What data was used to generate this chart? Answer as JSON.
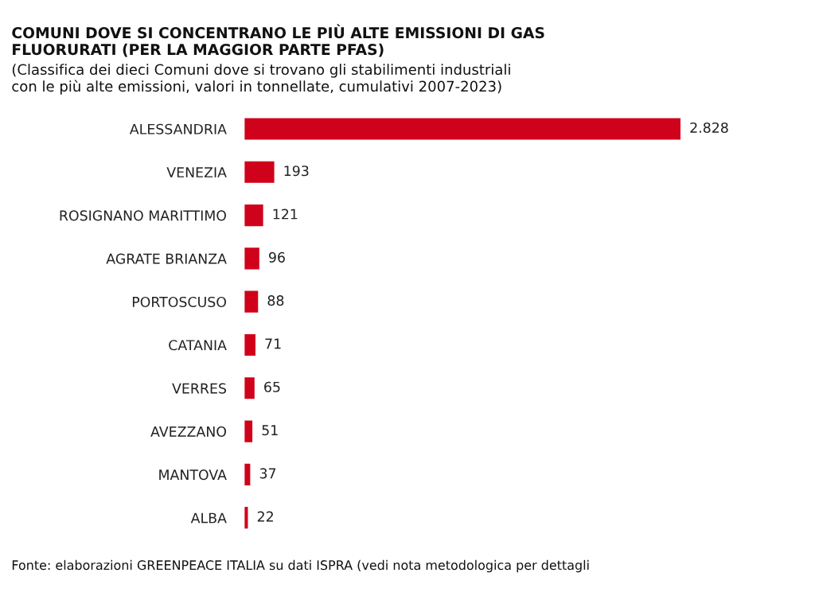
{
  "chart_data": {
    "type": "bar",
    "orientation": "horizontal",
    "title": "COMUNI DOVE SI CONCENTRANO LE PIÙ ALTE EMISSIONI DI GAS\nFLUORURATI (PER LA MAGGIOR PARTE PFAS)",
    "subtitle": "(Classifica dei dieci Comuni dove si trovano gli stabilimenti industriali\ncon le più alte emissioni, valori in tonnellate, cumulativi 2007-2023)",
    "categories": [
      "ALESSANDRIA",
      "VENEZIA",
      "ROSIGNANO MARITTIMO",
      "AGRATE BRIANZA",
      "PORTOSCUSO",
      "CATANIA",
      "VERRES",
      "AVEZZANO",
      "MANTOVA",
      "ALBA"
    ],
    "values": [
      2828,
      193,
      121,
      96,
      88,
      71,
      65,
      51,
      37,
      22
    ],
    "value_labels": [
      "2.828",
      "193",
      "121",
      "96",
      "88",
      "71",
      "65",
      "51",
      "37",
      "22"
    ],
    "color": "#d0021b",
    "grid": false,
    "legend": false,
    "annotations": [
      "Fonte: elaborazioni GREENPEACE ITALIA su dati ISPRA (vedi nota metodologica per dettagli"
    ]
  }
}
